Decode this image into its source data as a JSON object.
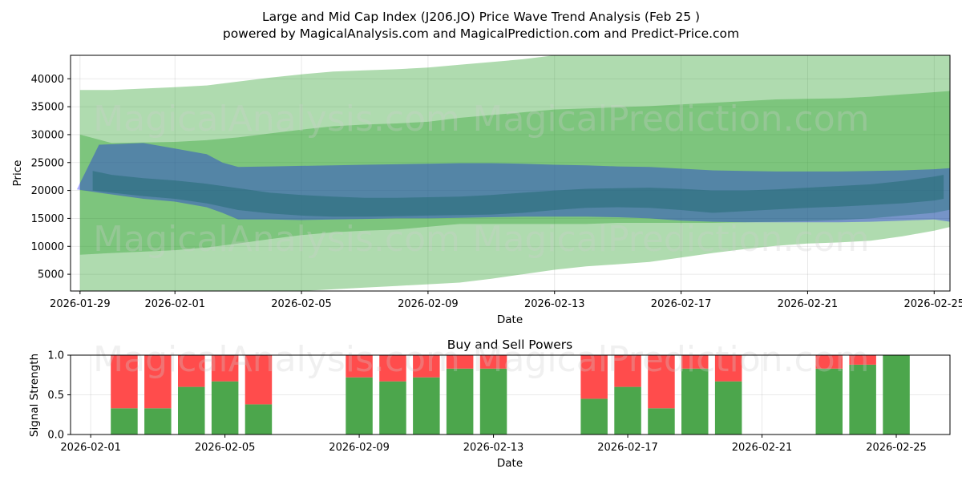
{
  "title_line1": "Large and Mid Cap Index (J206.JO) Price Wave Trend Analysis (Feb 25 )",
  "title_line2": "powered by MagicalAnalysis.com and MagicalPrediction.com and Predict-Price.com",
  "watermarks": [
    "MagicalAnalysis.com",
    "MagicalPrediction.com"
  ],
  "chart_data": [
    {
      "type": "area",
      "name": "price-wave",
      "xlabel": "Date",
      "ylabel": "Price",
      "xlim": [
        -0.3,
        27.5
      ],
      "ylim": [
        2000,
        44200
      ],
      "x_ticks": [
        {
          "day": 0,
          "label": "2026-01-29"
        },
        {
          "day": 3,
          "label": "2026-02-01"
        },
        {
          "day": 7,
          "label": "2026-02-05"
        },
        {
          "day": 11,
          "label": "2026-02-09"
        },
        {
          "day": 15,
          "label": "2026-02-13"
        },
        {
          "day": 19,
          "label": "2026-02-17"
        },
        {
          "day": 23,
          "label": "2026-02-21"
        },
        {
          "day": 27,
          "label": "2026-02-25"
        }
      ],
      "y_ticks": [
        5000,
        10000,
        15000,
        20000,
        25000,
        30000,
        35000,
        40000
      ],
      "bands": [
        {
          "name": "green-outer-band",
          "color": "#2ca02c",
          "opacity": 0.38,
          "x": [
            0,
            1,
            3,
            4,
            5,
            6,
            7,
            8,
            9,
            10,
            11,
            12,
            13,
            14,
            15,
            16,
            17,
            18,
            19,
            20,
            21,
            22,
            23,
            24,
            25,
            26,
            27,
            27.9
          ],
          "upper": [
            38000,
            38000,
            38500,
            38800,
            39500,
            40200,
            40800,
            41300,
            41500,
            41700,
            42000,
            42500,
            43000,
            43500,
            44200,
            44200,
            44200,
            44200,
            44200,
            44200,
            44200,
            44200,
            44200,
            44200,
            44200,
            44200,
            44200,
            44200
          ],
          "lower": [
            8500,
            8800,
            9300,
            9800,
            10500,
            11300,
            12000,
            12500,
            12800,
            13000,
            13500,
            14000,
            14000,
            14000,
            14000,
            14000,
            14200,
            14200,
            14200,
            14200,
            14300,
            14400,
            14500,
            14700,
            15000,
            15500,
            16000,
            17000
          ]
        },
        {
          "name": "green-inner-band",
          "color": "#2ca02c",
          "opacity": 0.38,
          "x": [
            0,
            1,
            3,
            4,
            5,
            6,
            7,
            8,
            9,
            10,
            11,
            12,
            13,
            14,
            15,
            16,
            17,
            18,
            19,
            20,
            21,
            22,
            23,
            24,
            25,
            26,
            27,
            27.9
          ],
          "upper": [
            30000,
            28500,
            28700,
            29000,
            29500,
            30200,
            30900,
            31500,
            31800,
            32000,
            32300,
            33000,
            33500,
            34000,
            34500,
            34700,
            34900,
            35100,
            35400,
            35700,
            36000,
            36300,
            36400,
            36500,
            36800,
            37200,
            37600,
            38000
          ],
          "lower": [
            2000,
            2000,
            2000,
            2000,
            2000,
            2000,
            2000,
            2300,
            2600,
            2900,
            3200,
            3500,
            4200,
            5000,
            5800,
            6400,
            6800,
            7200,
            8000,
            8800,
            9500,
            10100,
            10500,
            10700,
            11000,
            11800,
            12800,
            14000
          ]
        },
        {
          "name": "blue-band",
          "color": "#0000ff",
          "opacity": 0.32,
          "x": [
            -0.1,
            0.6,
            2,
            3,
            4,
            4.5,
            5,
            6,
            7,
            8,
            9,
            10,
            11,
            12,
            13,
            14,
            15,
            16,
            17,
            18,
            19,
            20,
            21,
            22,
            23,
            24,
            25,
            26,
            27,
            27.5
          ],
          "upper": [
            20200,
            28200,
            28500,
            27500,
            26500,
            25000,
            24200,
            24300,
            24400,
            24500,
            24600,
            24700,
            24800,
            24900,
            24900,
            24800,
            24600,
            24500,
            24300,
            24200,
            23900,
            23600,
            23500,
            23400,
            23400,
            23400,
            23500,
            23600,
            23800,
            24000
          ],
          "lower": [
            20200,
            19600,
            18500,
            18000,
            17000,
            16000,
            14800,
            14800,
            14700,
            14800,
            14900,
            15000,
            15000,
            15100,
            15200,
            15300,
            15300,
            15300,
            15200,
            15000,
            14600,
            14400,
            14300,
            14300,
            14300,
            14300,
            14400,
            14600,
            14800,
            14400
          ]
        },
        {
          "name": "dark-wave-band",
          "color": "#2a6e7a",
          "opacity": 0.6,
          "x": [
            0.4,
            1,
            2,
            3,
            4,
            5,
            6,
            7,
            8,
            9,
            10,
            11,
            12,
            13,
            14,
            15,
            16,
            17,
            18,
            19,
            20,
            21,
            22,
            23,
            24,
            25,
            26,
            27,
            27.3
          ],
          "upper": [
            23500,
            22800,
            22200,
            21800,
            21200,
            20400,
            19600,
            19200,
            18900,
            18700,
            18700,
            18800,
            18900,
            19200,
            19600,
            20000,
            20300,
            20400,
            20500,
            20300,
            20000,
            20000,
            20200,
            20500,
            20800,
            21100,
            21700,
            22500,
            22800
          ],
          "lower": [
            20000,
            19600,
            19000,
            18500,
            17700,
            16500,
            15900,
            15500,
            15300,
            15300,
            15400,
            15500,
            15600,
            15700,
            16000,
            16500,
            16900,
            17000,
            16900,
            16500,
            16000,
            16300,
            16600,
            16900,
            17100,
            17400,
            17700,
            18200,
            18500
          ]
        }
      ]
    },
    {
      "type": "bar",
      "name": "buy-sell-powers",
      "title": "Buy and Sell Powers",
      "xlabel": "Date",
      "ylabel": "Signal Strength",
      "ylim": [
        0,
        1.0
      ],
      "xlim": [
        -0.6,
        25.6
      ],
      "y_ticks": [
        {
          "value": 0.0,
          "label": "0.0"
        },
        {
          "value": 0.5,
          "label": "0.5"
        },
        {
          "value": 1.0,
          "label": "1.0"
        }
      ],
      "x_ticks": [
        {
          "day": 0,
          "label": "2026-02-01"
        },
        {
          "day": 4,
          "label": "2026-02-05"
        },
        {
          "day": 8,
          "label": "2026-02-09"
        },
        {
          "day": 12,
          "label": "2026-02-13"
        },
        {
          "day": 16,
          "label": "2026-02-17"
        },
        {
          "day": 20,
          "label": "2026-02-21"
        },
        {
          "day": 24,
          "label": "2026-02-25"
        }
      ],
      "series": [
        {
          "name": "Buy",
          "color": "#4ca64c"
        },
        {
          "name": "Sell",
          "color": "#ff4c4c"
        }
      ],
      "bars": [
        {
          "day": 1,
          "buy": 0.33
        },
        {
          "day": 2,
          "buy": 0.33
        },
        {
          "day": 3,
          "buy": 0.6
        },
        {
          "day": 4,
          "buy": 0.67
        },
        {
          "day": 5,
          "buy": 0.38
        },
        {
          "day": 8,
          "buy": 0.72
        },
        {
          "day": 9,
          "buy": 0.67
        },
        {
          "day": 10,
          "buy": 0.72
        },
        {
          "day": 11,
          "buy": 0.83
        },
        {
          "day": 12,
          "buy": 0.83
        },
        {
          "day": 15,
          "buy": 0.45
        },
        {
          "day": 16,
          "buy": 0.6
        },
        {
          "day": 17,
          "buy": 0.33
        },
        {
          "day": 18,
          "buy": 0.83
        },
        {
          "day": 19,
          "buy": 0.67
        },
        {
          "day": 22,
          "buy": 0.83
        },
        {
          "day": 23,
          "buy": 0.88
        },
        {
          "day": 24,
          "buy": 1.0
        }
      ]
    }
  ]
}
